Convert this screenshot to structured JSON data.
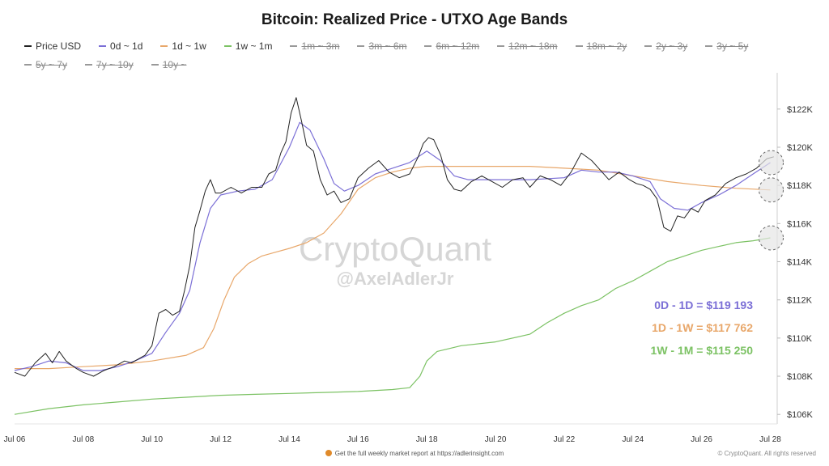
{
  "title": "Bitcoin: Realized Price - UTXO Age Bands",
  "legend": [
    {
      "label": "Price USD",
      "color": "#222222",
      "active": true
    },
    {
      "label": "0d ~ 1d",
      "color": "#7b6fd6",
      "active": true
    },
    {
      "label": "1d ~ 1w",
      "color": "#e8a76a",
      "active": true
    },
    {
      "label": "1w ~ 1m",
      "color": "#7cc264",
      "active": true
    },
    {
      "label": "1m ~ 3m",
      "color": "#999999",
      "active": false
    },
    {
      "label": "3m ~ 6m",
      "color": "#999999",
      "active": false
    },
    {
      "label": "6m ~ 12m",
      "color": "#999999",
      "active": false
    },
    {
      "label": "12m ~ 18m",
      "color": "#999999",
      "active": false
    },
    {
      "label": "18m ~ 2y",
      "color": "#999999",
      "active": false
    },
    {
      "label": "2y ~ 3y",
      "color": "#999999",
      "active": false
    },
    {
      "label": "3y ~ 5y",
      "color": "#999999",
      "active": false
    },
    {
      "label": "5y ~ 7y",
      "color": "#999999",
      "active": false
    },
    {
      "label": "7y ~ 10y",
      "color": "#999999",
      "active": false
    },
    {
      "label": "10y ~",
      "color": "#999999",
      "active": false
    }
  ],
  "watermark": {
    "brand": "CryptoQuant",
    "handle": "@AxelAdlerJr"
  },
  "annotations": [
    {
      "text": "0D - 1D = $119 193",
      "color": "#7b6fd6"
    },
    {
      "text": "1D - 1W = $117 762",
      "color": "#e8a76a"
    },
    {
      "text": "1W - 1M = $115 250",
      "color": "#7cc264"
    }
  ],
  "footer": {
    "center": "Get the full weekly market report at https://adlerinsight.com",
    "right": "© CryptoQuant. All rights reserved"
  },
  "chart_data": {
    "type": "line",
    "title": "Bitcoin: Realized Price - UTXO Age Bands",
    "x_range": [
      6.0,
      28.2
    ],
    "ylim": [
      105500,
      123900
    ],
    "x_ticks": [
      {
        "value": 6,
        "label": "Jul 06"
      },
      {
        "value": 8,
        "label": "Jul 08"
      },
      {
        "value": 10,
        "label": "Jul 10"
      },
      {
        "value": 12,
        "label": "Jul 12"
      },
      {
        "value": 14,
        "label": "Jul 14"
      },
      {
        "value": 16,
        "label": "Jul 16"
      },
      {
        "value": 18,
        "label": "Jul 18"
      },
      {
        "value": 20,
        "label": "Jul 20"
      },
      {
        "value": 22,
        "label": "Jul 22"
      },
      {
        "value": 24,
        "label": "Jul 24"
      },
      {
        "value": 26,
        "label": "Jul 26"
      },
      {
        "value": 28,
        "label": "Jul 28"
      }
    ],
    "y_ticks": [
      {
        "value": 106000,
        "label": "$106K"
      },
      {
        "value": 108000,
        "label": "$108K"
      },
      {
        "value": 110000,
        "label": "$110K"
      },
      {
        "value": 112000,
        "label": "$112K"
      },
      {
        "value": 114000,
        "label": "$114K"
      },
      {
        "value": 116000,
        "label": "$116K"
      },
      {
        "value": 118000,
        "label": "$118K"
      },
      {
        "value": 120000,
        "label": "$120K"
      },
      {
        "value": 122000,
        "label": "$122K"
      }
    ],
    "series": [
      {
        "name": "Price USD",
        "color": "#222222",
        "width": 1,
        "points": [
          [
            6.0,
            108200
          ],
          [
            6.3,
            108000
          ],
          [
            6.6,
            108700
          ],
          [
            6.9,
            109200
          ],
          [
            7.1,
            108700
          ],
          [
            7.3,
            109300
          ],
          [
            7.5,
            108800
          ],
          [
            7.8,
            108400
          ],
          [
            8.0,
            108200
          ],
          [
            8.3,
            108000
          ],
          [
            8.6,
            108300
          ],
          [
            8.9,
            108500
          ],
          [
            9.2,
            108800
          ],
          [
            9.4,
            108700
          ],
          [
            9.6,
            108900
          ],
          [
            9.8,
            109100
          ],
          [
            10.0,
            109600
          ],
          [
            10.2,
            111300
          ],
          [
            10.4,
            111500
          ],
          [
            10.6,
            111200
          ],
          [
            10.8,
            111400
          ],
          [
            10.95,
            112500
          ],
          [
            11.1,
            113800
          ],
          [
            11.25,
            115800
          ],
          [
            11.4,
            116700
          ],
          [
            11.55,
            117700
          ],
          [
            11.7,
            118300
          ],
          [
            11.85,
            117600
          ],
          [
            12.0,
            117600
          ],
          [
            12.3,
            117900
          ],
          [
            12.6,
            117600
          ],
          [
            12.9,
            117900
          ],
          [
            13.2,
            117900
          ],
          [
            13.4,
            118600
          ],
          [
            13.6,
            118800
          ],
          [
            13.75,
            119700
          ],
          [
            13.9,
            120300
          ],
          [
            14.05,
            121800
          ],
          [
            14.2,
            122600
          ],
          [
            14.35,
            121400
          ],
          [
            14.5,
            120100
          ],
          [
            14.7,
            119800
          ],
          [
            14.9,
            118300
          ],
          [
            15.1,
            117500
          ],
          [
            15.3,
            117700
          ],
          [
            15.5,
            117100
          ],
          [
            15.75,
            117300
          ],
          [
            16.0,
            118400
          ],
          [
            16.3,
            118900
          ],
          [
            16.6,
            119300
          ],
          [
            16.9,
            118700
          ],
          [
            17.2,
            118400
          ],
          [
            17.5,
            118600
          ],
          [
            17.75,
            119500
          ],
          [
            17.9,
            120200
          ],
          [
            18.05,
            120500
          ],
          [
            18.2,
            120400
          ],
          [
            18.4,
            119600
          ],
          [
            18.6,
            118300
          ],
          [
            18.8,
            117800
          ],
          [
            19.0,
            117700
          ],
          [
            19.3,
            118200
          ],
          [
            19.6,
            118500
          ],
          [
            19.9,
            118200
          ],
          [
            20.2,
            117900
          ],
          [
            20.5,
            118300
          ],
          [
            20.8,
            118400
          ],
          [
            21.0,
            117900
          ],
          [
            21.3,
            118500
          ],
          [
            21.6,
            118300
          ],
          [
            21.9,
            118000
          ],
          [
            22.2,
            118700
          ],
          [
            22.5,
            119700
          ],
          [
            22.8,
            119300
          ],
          [
            23.0,
            118900
          ],
          [
            23.3,
            118300
          ],
          [
            23.6,
            118700
          ],
          [
            23.9,
            118300
          ],
          [
            24.1,
            118100
          ],
          [
            24.3,
            118000
          ],
          [
            24.5,
            117800
          ],
          [
            24.7,
            117300
          ],
          [
            24.9,
            115800
          ],
          [
            25.1,
            115600
          ],
          [
            25.3,
            116400
          ],
          [
            25.5,
            116300
          ],
          [
            25.7,
            116800
          ],
          [
            25.9,
            116600
          ],
          [
            26.1,
            117200
          ],
          [
            26.4,
            117500
          ],
          [
            26.7,
            118100
          ],
          [
            27.0,
            118400
          ],
          [
            27.3,
            118600
          ],
          [
            27.6,
            118900
          ],
          [
            27.9,
            119400
          ],
          [
            28.1,
            119500
          ]
        ]
      },
      {
        "name": "0d ~ 1d",
        "color": "#7b6fd6",
        "width": 1.2,
        "points": [
          [
            6.0,
            108300
          ],
          [
            6.5,
            108500
          ],
          [
            7.0,
            108800
          ],
          [
            7.5,
            108700
          ],
          [
            8.0,
            108300
          ],
          [
            8.5,
            108300
          ],
          [
            9.0,
            108500
          ],
          [
            9.5,
            108800
          ],
          [
            10.0,
            109200
          ],
          [
            10.4,
            110300
          ],
          [
            10.8,
            111300
          ],
          [
            11.1,
            112500
          ],
          [
            11.4,
            115000
          ],
          [
            11.7,
            116800
          ],
          [
            12.0,
            117500
          ],
          [
            12.5,
            117700
          ],
          [
            13.0,
            117800
          ],
          [
            13.5,
            118300
          ],
          [
            14.0,
            120000
          ],
          [
            14.3,
            121300
          ],
          [
            14.6,
            120900
          ],
          [
            15.0,
            119400
          ],
          [
            15.3,
            118100
          ],
          [
            15.6,
            117700
          ],
          [
            16.0,
            118000
          ],
          [
            16.5,
            118600
          ],
          [
            17.0,
            118900
          ],
          [
            17.5,
            119200
          ],
          [
            18.0,
            119800
          ],
          [
            18.4,
            119300
          ],
          [
            18.8,
            118500
          ],
          [
            19.2,
            118300
          ],
          [
            20.0,
            118300
          ],
          [
            21.0,
            118300
          ],
          [
            22.0,
            118400
          ],
          [
            22.5,
            118800
          ],
          [
            23.0,
            118700
          ],
          [
            23.5,
            118700
          ],
          [
            24.0,
            118500
          ],
          [
            24.5,
            118200
          ],
          [
            24.8,
            117300
          ],
          [
            25.2,
            116800
          ],
          [
            25.6,
            116700
          ],
          [
            26.0,
            117100
          ],
          [
            26.5,
            117500
          ],
          [
            27.0,
            118000
          ],
          [
            27.5,
            118600
          ],
          [
            28.0,
            119193
          ]
        ]
      },
      {
        "name": "1d ~ 1w",
        "color": "#e8a76a",
        "width": 1.2,
        "points": [
          [
            6.0,
            108400
          ],
          [
            7.0,
            108400
          ],
          [
            8.0,
            108500
          ],
          [
            9.0,
            108600
          ],
          [
            10.0,
            108800
          ],
          [
            11.0,
            109100
          ],
          [
            11.5,
            109500
          ],
          [
            11.8,
            110500
          ],
          [
            12.1,
            112000
          ],
          [
            12.4,
            113200
          ],
          [
            12.8,
            113900
          ],
          [
            13.2,
            114300
          ],
          [
            13.6,
            114500
          ],
          [
            14.0,
            114700
          ],
          [
            14.5,
            115000
          ],
          [
            15.0,
            115500
          ],
          [
            15.5,
            116500
          ],
          [
            16.0,
            117800
          ],
          [
            16.5,
            118400
          ],
          [
            17.0,
            118700
          ],
          [
            17.5,
            118900
          ],
          [
            18.0,
            119000
          ],
          [
            19.0,
            119000
          ],
          [
            20.0,
            119000
          ],
          [
            21.0,
            119000
          ],
          [
            22.0,
            118900
          ],
          [
            23.0,
            118800
          ],
          [
            24.0,
            118500
          ],
          [
            25.0,
            118200
          ],
          [
            26.0,
            118000
          ],
          [
            27.0,
            117850
          ],
          [
            28.0,
            117762
          ]
        ]
      },
      {
        "name": "1w ~ 1m",
        "color": "#7cc264",
        "width": 1.2,
        "points": [
          [
            6.0,
            106000
          ],
          [
            7.0,
            106300
          ],
          [
            8.0,
            106500
          ],
          [
            9.0,
            106650
          ],
          [
            10.0,
            106800
          ],
          [
            11.0,
            106900
          ],
          [
            12.0,
            107000
          ],
          [
            13.0,
            107050
          ],
          [
            14.0,
            107100
          ],
          [
            15.0,
            107150
          ],
          [
            16.0,
            107200
          ],
          [
            17.0,
            107300
          ],
          [
            17.5,
            107400
          ],
          [
            17.8,
            108000
          ],
          [
            18.0,
            108800
          ],
          [
            18.3,
            109300
          ],
          [
            19.0,
            109600
          ],
          [
            20.0,
            109800
          ],
          [
            21.0,
            110200
          ],
          [
            21.5,
            110800
          ],
          [
            22.0,
            111300
          ],
          [
            22.5,
            111700
          ],
          [
            23.0,
            112000
          ],
          [
            23.5,
            112600
          ],
          [
            24.0,
            113000
          ],
          [
            24.5,
            113500
          ],
          [
            25.0,
            114000
          ],
          [
            25.5,
            114300
          ],
          [
            26.0,
            114600
          ],
          [
            26.5,
            114800
          ],
          [
            27.0,
            115000
          ],
          [
            27.5,
            115100
          ],
          [
            28.0,
            115250
          ]
        ]
      }
    ],
    "highlights": [
      {
        "x": 28.0,
        "y": 119193
      },
      {
        "x": 28.0,
        "y": 117762
      },
      {
        "x": 28.0,
        "y": 115250
      }
    ]
  }
}
